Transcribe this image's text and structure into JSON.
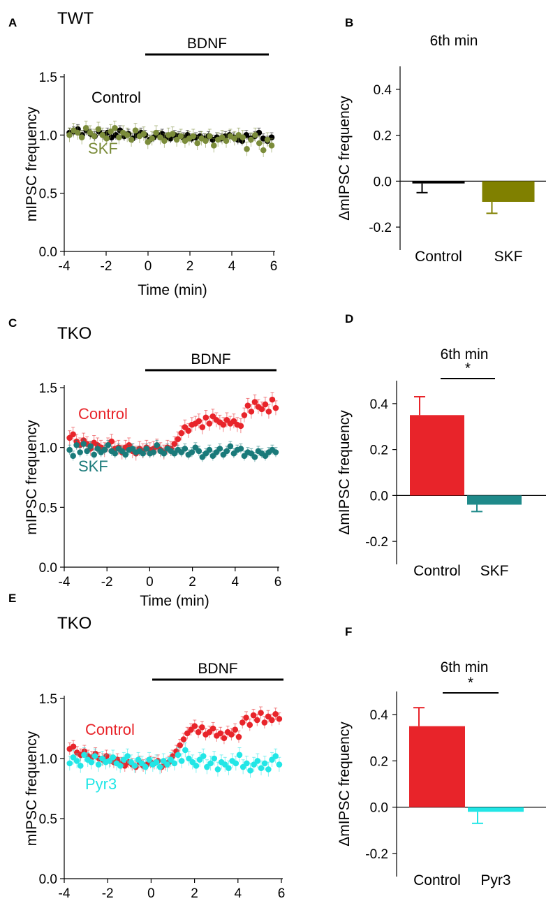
{
  "colors": {
    "black": "#000000",
    "red": "#e8242a",
    "olive": "#808000",
    "olive_points": "#7b8c3a",
    "teal": "#1a7a7a",
    "teal_bar": "#1f8a8a",
    "cyan": "#22e6e6",
    "errbar_gray": "#9a9a9a"
  },
  "chart_data": [
    {
      "id": "A",
      "panel_label": "A",
      "type": "scatter",
      "condition": "TWT",
      "annotation": "BDNF",
      "annotation_range": [
        0,
        6
      ],
      "xlabel": "Time (min)",
      "ylabel": "mIPSC frequency",
      "xlim": [
        -4,
        6
      ],
      "ylim": [
        0,
        1.5
      ],
      "xticks": [
        "-4",
        "-2",
        "0",
        "2",
        "4",
        "6"
      ],
      "yticks": [
        "0.0",
        "0.5",
        "1.0",
        "1.5"
      ],
      "series": [
        {
          "name": "Control",
          "color": "#000000",
          "err": 0.04,
          "y": [
            1.02,
            1.03,
            1.05,
            1.0,
            1.04,
            1.01,
            0.99,
            1.03,
            1.0,
            1.02,
            0.98,
            1.0,
            1.04,
            0.99,
            1.01,
            0.97,
            1.0,
            1.02,
            1.0,
            0.96,
            0.98,
            1.0,
            1.01,
            0.98,
            0.97,
            1.0,
            0.99,
            0.98,
            1.0,
            0.97,
            0.98,
            0.99,
            0.97,
            0.99,
            0.96,
            0.98,
            0.97,
            0.99,
            1.0,
            0.98,
            0.96,
            0.95,
            1.0,
            0.97,
            0.99,
            1.02,
            0.97,
            0.95,
            0.98
          ]
        },
        {
          "name": "SKF",
          "color": "#7b8c3a",
          "err": 0.06,
          "y": [
            1.0,
            1.04,
            1.02,
            0.98,
            1.06,
            1.02,
            0.99,
            1.05,
            1.0,
            0.97,
            1.03,
            1.06,
            0.98,
            1.02,
            1.0,
            0.96,
            1.04,
            0.99,
            1.01,
            0.94,
            0.97,
            1.02,
            0.98,
            0.95,
            1.0,
            1.01,
            0.96,
            0.99,
            0.95,
            0.97,
            0.99,
            0.93,
            0.97,
            0.95,
            0.99,
            0.91,
            0.96,
            0.98,
            0.95,
            0.99,
            0.97,
            1.0,
            0.98,
            0.88,
            0.96,
            1.0,
            0.93,
            0.87,
            0.96,
            0.91
          ]
        }
      ],
      "legend": [
        {
          "text": "Control",
          "color": "#000000"
        },
        {
          "text": "SKF",
          "color": "#7b8c3a"
        }
      ]
    },
    {
      "id": "B",
      "panel_label": "B",
      "type": "bar",
      "title": "6th min",
      "ylabel": "ΔmIPSC frequency",
      "ylim": [
        -0.3,
        0.5
      ],
      "yticks": [
        "-0.2",
        "0.0",
        "0.2",
        "0.4"
      ],
      "yticks_values": [
        -0.2,
        0.0,
        0.2,
        0.4
      ],
      "categories": [
        "Control",
        "SKF"
      ],
      "values": [
        -0.01,
        -0.09
      ],
      "errors": [
        0.04,
        0.05
      ],
      "colors": [
        "#000000",
        "#808000"
      ],
      "significance": ""
    },
    {
      "id": "C",
      "panel_label": "C",
      "type": "scatter",
      "condition": "TKO",
      "annotation": "BDNF",
      "annotation_range": [
        0,
        6
      ],
      "xlabel": "Time (min)",
      "ylabel": "mIPSC frequency",
      "xlim": [
        -4,
        6
      ],
      "ylim": [
        0,
        1.5
      ],
      "xticks": [
        "-4",
        "-2",
        "0",
        "2",
        "4",
        "6"
      ],
      "yticks": [
        "0.0",
        "0.5",
        "1.0",
        "1.5"
      ],
      "series": [
        {
          "name": "Control",
          "color": "#e8242a",
          "err": 0.06,
          "y": [
            1.08,
            1.11,
            1.05,
            1.02,
            1.06,
            1.03,
            0.99,
            1.04,
            1.02,
            1.0,
            0.98,
            1.02,
            1.05,
            0.99,
            1.0,
            0.96,
            1.0,
            1.02,
            0.97,
            0.95,
            0.99,
            0.97,
            1.0,
            0.98,
            0.99,
            1.01,
            0.98,
            0.96,
            1.0,
            0.99,
            1.03,
            1.07,
            1.12,
            1.17,
            1.14,
            1.19,
            1.2,
            1.22,
            1.17,
            1.25,
            1.2,
            1.26,
            1.23,
            1.21,
            1.19,
            1.23,
            1.2,
            1.22,
            1.19,
            1.18,
            1.27,
            1.35,
            1.3,
            1.38,
            1.34,
            1.32,
            1.36,
            1.3,
            1.4,
            1.33
          ]
        },
        {
          "name": "SKF",
          "color": "#1a7a7a",
          "err": 0.04,
          "y": [
            0.98,
            0.93,
            1.02,
            0.96,
            1.03,
            0.97,
            1.01,
            0.94,
            0.99,
            0.96,
            0.98,
            1.02,
            0.97,
            0.95,
            0.99,
            0.97,
            0.94,
            0.98,
            0.99,
            0.96,
            0.97,
            0.95,
            0.99,
            0.95,
            0.96,
            1.02,
            0.97,
            0.95,
            0.99,
            0.97,
            0.95,
            0.98,
            0.96,
            0.99,
            0.94,
            0.96,
            1.0,
            0.97,
            0.92,
            0.95,
            0.98,
            0.93,
            0.96,
            0.99,
            0.94,
            0.97,
            1.01,
            0.95,
            0.98,
            0.99,
            0.93,
            0.96,
            0.95,
            0.92,
            0.97,
            0.95,
            0.93,
            0.96,
            0.98,
            0.96
          ]
        }
      ],
      "legend": [
        {
          "text": "Control",
          "color": "#e8242a"
        },
        {
          "text": "SKF",
          "color": "#1a7a7a"
        }
      ]
    },
    {
      "id": "D",
      "panel_label": "D",
      "type": "bar",
      "title": "6th min",
      "ylabel": "ΔmIPSC frequency",
      "ylim": [
        -0.3,
        0.5
      ],
      "yticks": [
        "-0.2",
        "0.0",
        "0.2",
        "0.4"
      ],
      "yticks_values": [
        -0.2,
        0.0,
        0.2,
        0.4
      ],
      "categories": [
        "Control",
        "SKF"
      ],
      "values": [
        0.35,
        -0.04
      ],
      "errors": [
        0.08,
        0.03
      ],
      "colors": [
        "#e8242a",
        "#1f8a8a"
      ],
      "significance": "*"
    },
    {
      "id": "E",
      "panel_label": "E",
      "type": "scatter",
      "condition": "TKO",
      "annotation": "BDNF",
      "annotation_range": [
        0,
        6
      ],
      "xlabel": "",
      "ylabel": "mIPSC frequency",
      "xlim": [
        -4,
        6
      ],
      "ylim": [
        0,
        1.5
      ],
      "xticks": [
        "-4",
        "-2",
        "0",
        "2",
        "4",
        "6"
      ],
      "yticks": [
        "0.0",
        "0.5",
        "1.0",
        "1.5"
      ],
      "series": [
        {
          "name": "Control",
          "color": "#e8242a",
          "err": 0.05,
          "y": [
            1.08,
            1.1,
            1.05,
            1.03,
            1.06,
            1.02,
            1.01,
            1.04,
            1.0,
            0.99,
            1.02,
            0.98,
            0.97,
            0.99,
            0.96,
            0.94,
            0.97,
            0.95,
            0.93,
            0.97,
            0.94,
            0.95,
            0.97,
            0.96,
            0.98,
            0.93,
            0.95,
            0.97,
            1.02,
            1.06,
            1.11,
            1.16,
            1.21,
            1.24,
            1.27,
            1.22,
            1.26,
            1.2,
            1.22,
            1.25,
            1.19,
            1.21,
            1.17,
            1.22,
            1.2,
            1.24,
            1.18,
            1.3,
            1.34,
            1.28,
            1.36,
            1.32,
            1.38,
            1.3,
            1.35,
            1.32,
            1.37,
            1.33
          ]
        },
        {
          "name": "Pyr3",
          "color": "#22e6e6",
          "err": 0.06,
          "y": [
            0.96,
            1.01,
            0.98,
            0.94,
            1.03,
            0.99,
            0.97,
            1.02,
            0.95,
            1.0,
            0.97,
            0.98,
            1.01,
            0.96,
            0.94,
            0.99,
            1.02,
            0.97,
            0.94,
            0.99,
            0.96,
            0.93,
            0.99,
            0.95,
            0.97,
            0.93,
            0.98,
            0.95,
            0.99,
            0.96,
            1.03,
            0.98,
            1.07,
            1.0,
            0.97,
            0.94,
            0.99,
            1.02,
            0.93,
            0.96,
            1.0,
            0.91,
            0.97,
            0.95,
            0.92,
            0.98,
            0.96,
            1.03,
            0.93,
            0.96,
            0.9,
            0.95,
            0.98,
            0.92,
            0.96,
            0.91,
            0.99,
            1.02,
            0.95
          ]
        }
      ],
      "legend": [
        {
          "text": "Control",
          "color": "#e8242a"
        },
        {
          "text": "Pyr3",
          "color": "#22e6e6"
        }
      ]
    },
    {
      "id": "F",
      "panel_label": "F",
      "type": "bar",
      "title": "6th min",
      "ylabel": "ΔmIPSC frequency",
      "ylim": [
        -0.3,
        0.5
      ],
      "yticks": [
        "-0.2",
        "0.0",
        "0.2",
        "0.4"
      ],
      "yticks_values": [
        -0.2,
        0.0,
        0.2,
        0.4
      ],
      "categories": [
        "Control",
        "Pyr3"
      ],
      "values": [
        0.35,
        -0.02
      ],
      "errors": [
        0.08,
        0.05
      ],
      "colors": [
        "#e8242a",
        "#22e6e6"
      ],
      "significance": "*"
    }
  ]
}
